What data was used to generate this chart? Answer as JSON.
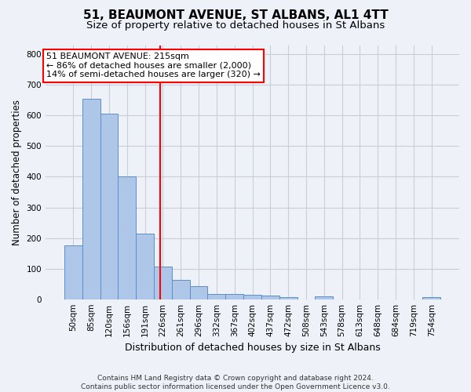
{
  "title": "51, BEAUMONT AVENUE, ST ALBANS, AL1 4TT",
  "subtitle": "Size of property relative to detached houses in St Albans",
  "xlabel": "Distribution of detached houses by size in St Albans",
  "ylabel": "Number of detached properties",
  "bar_labels": [
    "50sqm",
    "85sqm",
    "120sqm",
    "156sqm",
    "191sqm",
    "226sqm",
    "261sqm",
    "296sqm",
    "332sqm",
    "367sqm",
    "402sqm",
    "437sqm",
    "472sqm",
    "508sqm",
    "543sqm",
    "578sqm",
    "613sqm",
    "648sqm",
    "684sqm",
    "719sqm",
    "754sqm"
  ],
  "bar_values": [
    175,
    655,
    605,
    400,
    215,
    107,
    63,
    43,
    18,
    16,
    14,
    13,
    8,
    0,
    9,
    0,
    0,
    0,
    0,
    0,
    7
  ],
  "bar_color": "#aec6e8",
  "bar_edge_color": "#5b8fc9",
  "vertical_line_x": 4.85,
  "annotation_text": "51 BEAUMONT AVENUE: 215sqm\n← 86% of detached houses are smaller (2,000)\n14% of semi-detached houses are larger (320) →",
  "annotation_box_color": "white",
  "annotation_box_edge_color": "red",
  "vline_color": "red",
  "ylim": [
    0,
    830
  ],
  "yticks": [
    0,
    100,
    200,
    300,
    400,
    500,
    600,
    700,
    800
  ],
  "grid_color": "#c8cdd8",
  "bg_color": "#eef2f8",
  "footer": "Contains HM Land Registry data © Crown copyright and database right 2024.\nContains public sector information licensed under the Open Government Licence v3.0.",
  "title_fontsize": 11,
  "subtitle_fontsize": 9.5,
  "tick_fontsize": 7.5,
  "ylabel_fontsize": 8.5,
  "xlabel_fontsize": 9
}
